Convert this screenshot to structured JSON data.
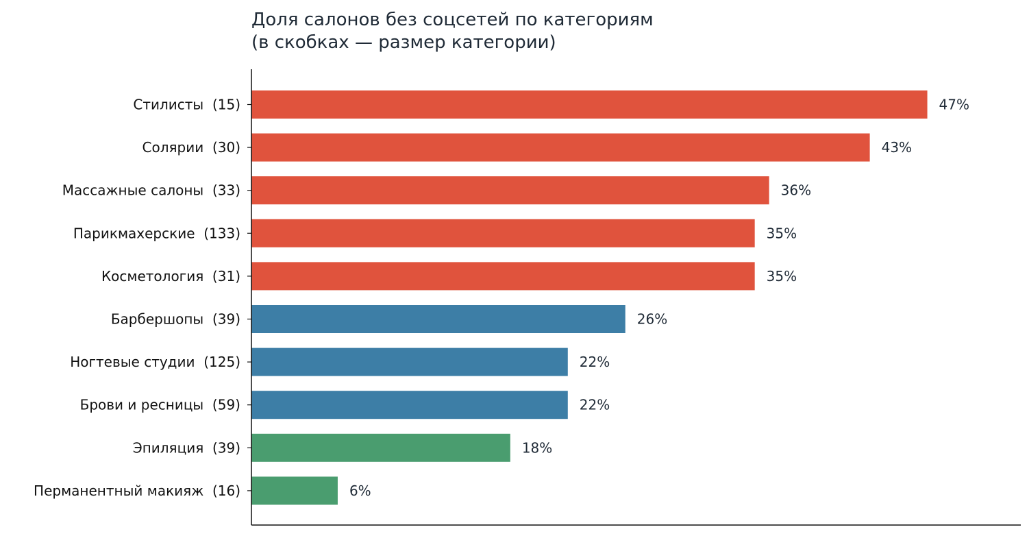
{
  "chart_data": {
    "type": "bar",
    "orientation": "horizontal",
    "title_lines": [
      "Доля салонов без соцсетей по категориям",
      "(в скобках — размер категории)"
    ],
    "xlabel": "",
    "ylabel": "",
    "xlim": [
      0,
      53.5
    ],
    "grid": false,
    "legend": "none",
    "categories": [
      "Стилисты  (15)",
      "Солярии  (30)",
      "Массажные салоны  (33)",
      "Парикмахерские  (133)",
      "Косметология  (31)",
      "Барбершопы  (39)",
      "Ногтевые студии  (125)",
      "Брови и ресницы  (59)",
      "Эпиляция  (39)",
      "Перманентный макияж  (16)"
    ],
    "values": [
      47,
      43,
      36,
      35,
      35,
      26,
      22,
      22,
      18,
      6
    ],
    "value_labels": [
      "47%",
      "43%",
      "36%",
      "35%",
      "35%",
      "26%",
      "22%",
      "22%",
      "18%",
      "6%"
    ],
    "bar_colors": [
      "#e0533d",
      "#e0533d",
      "#e0533d",
      "#e0533d",
      "#e0533d",
      "#3d7ea6",
      "#3d7ea6",
      "#3d7ea6",
      "#4a9d6f",
      "#4a9d6f"
    ]
  }
}
